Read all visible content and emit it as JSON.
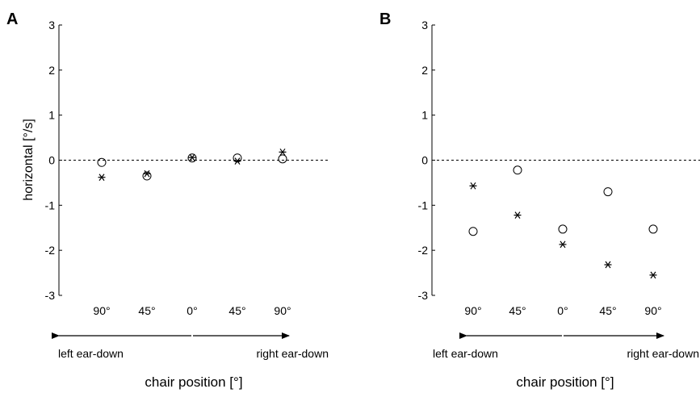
{
  "chart_data": [
    {
      "type": "scatter",
      "panel": "A",
      "ylabel": "horizontal [°/s]",
      "xlabel": "chair position [°]",
      "ylim": [
        -3,
        3
      ],
      "yticks": [
        "3",
        "2",
        "1",
        "0",
        "-1",
        "-2",
        "-3"
      ],
      "categories": [
        "90°",
        "45°",
        "0°",
        "45°",
        "90°"
      ],
      "left_direction_label": "left ear-down",
      "right_direction_label": "right ear-down",
      "zero_line": "dashed",
      "series": [
        {
          "marker": "circle",
          "values": [
            -0.05,
            -0.35,
            0.05,
            0.05,
            0.03
          ]
        },
        {
          "marker": "asterisk",
          "values": [
            -0.38,
            -0.3,
            0.06,
            -0.02,
            0.18
          ]
        }
      ]
    },
    {
      "type": "scatter",
      "panel": "B",
      "ylabel": "",
      "xlabel": "chair position [°]",
      "ylim": [
        -3,
        3
      ],
      "yticks": [
        "3",
        "2",
        "1",
        "0",
        "-1",
        "-2",
        "-3"
      ],
      "categories": [
        "90°",
        "45°",
        "0°",
        "45°",
        "90°"
      ],
      "left_direction_label": "left ear-down",
      "right_direction_label": "right ear-down",
      "zero_line": "dashed",
      "series": [
        {
          "marker": "circle",
          "values": [
            -1.58,
            -0.22,
            -1.53,
            -0.7,
            -1.53
          ]
        },
        {
          "marker": "asterisk",
          "values": [
            -0.57,
            -1.22,
            -1.87,
            -2.32,
            -2.55
          ]
        }
      ]
    }
  ]
}
